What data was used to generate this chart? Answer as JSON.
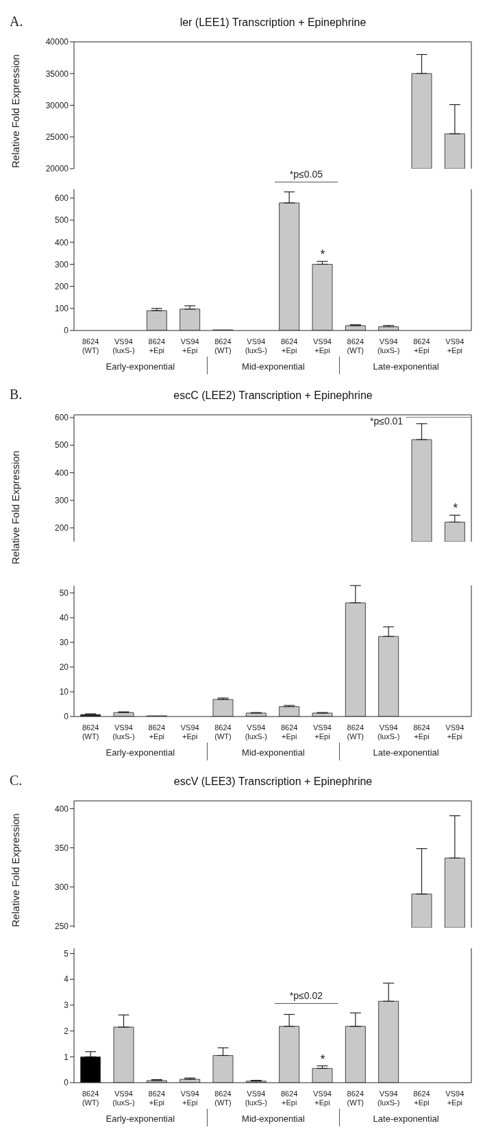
{
  "chart_data": [
    {
      "type": "bar",
      "title": "ler (LEE1) Transcription + Epinephrine",
      "categories": [
        null,
        null,
        null,
        null,
        null,
        null,
        null,
        null,
        null,
        null,
        null,
        null
      ],
      "values": [
        null,
        null,
        null,
        null,
        null,
        null,
        null,
        null,
        null,
        null,
        35000,
        25500
      ],
      "colors": [
        "#c8c8c8",
        "#c8c8c8",
        "#c8c8c8",
        "#c8c8c8",
        "#c8c8c8",
        "#c8c8c8",
        "#c8c8c8",
        "#c8c8c8",
        "#c8c8c8",
        "#c8c8c8",
        "#c8c8c8",
        "#c8c8c8"
      ],
      "errors": [
        null,
        null,
        null,
        null,
        null,
        null,
        null,
        null,
        null,
        null,
        [
          35000,
          38000
        ],
        [
          25500,
          30100
        ]
      ],
      "ylim": [
        20000,
        40000
      ],
      "yticks": [
        20000,
        25000,
        30000,
        35000,
        40000
      ],
      "tick_labels": "y",
      "annotations": [
        "A."
      ]
    },
    {
      "type": "bar",
      "ylabel": "Relative Fold Expression",
      "categories": [
        "8624 (WT)",
        "VS94 (luxS-)",
        "8624 +Epi",
        "VS94 +Epi",
        "8624 (WT)",
        "VS94 (luxS-)",
        "8624 +Epi",
        "VS94 +Epi",
        "8624 (WT)",
        "VS94 (luxS-)",
        "8624 +Epi",
        "VS94 +Epi"
      ],
      "values": [
        null,
        null,
        90,
        97,
        3,
        null,
        578,
        300,
        22,
        17,
        null,
        null
      ],
      "colors": [
        "#c8c8c8",
        "#c8c8c8",
        "#c8c8c8",
        "#c8c8c8",
        "#c8c8c8",
        "#c8c8c8",
        "#c8c8c8",
        "#c8c8c8",
        "#c8c8c8",
        "#c8c8c8",
        "#c8c8c8",
        "#c8c8c8"
      ],
      "errors": [
        null,
        null,
        [
          90,
          100
        ],
        [
          97,
          112
        ],
        null,
        null,
        [
          578,
          628
        ],
        [
          300,
          313
        ],
        [
          22,
          26
        ],
        [
          17,
          23
        ],
        null,
        null
      ],
      "ylim": [
        0,
        640
      ],
      "yticks": [
        0,
        100,
        200,
        300,
        400,
        500,
        600
      ],
      "annotations": [
        "*p≤0.05",
        "*",
        "Early-exponential",
        "Mid-exponential",
        "Late-exponential"
      ]
    },
    {
      "type": "bar",
      "title": "escC (LEE2) Transcription + Epinephrine",
      "categories": [
        null,
        null,
        null,
        null,
        null,
        null,
        null,
        null,
        null,
        null,
        null,
        null
      ],
      "values": [
        null,
        null,
        null,
        null,
        null,
        null,
        null,
        null,
        null,
        null,
        520,
        221
      ],
      "colors": [
        "#c8c8c8",
        "#c8c8c8",
        "#c8c8c8",
        "#c8c8c8",
        "#c8c8c8",
        "#c8c8c8",
        "#c8c8c8",
        "#c8c8c8",
        "#c8c8c8",
        "#c8c8c8",
        "#c8c8c8",
        "#c8c8c8"
      ],
      "errors": [
        null,
        null,
        null,
        null,
        null,
        null,
        null,
        null,
        null,
        null,
        [
          520,
          578
        ],
        [
          221,
          246
        ]
      ],
      "ylim": [
        150,
        610
      ],
      "yticks": [
        200,
        300,
        400,
        500,
        600
      ],
      "tick_labels": "y",
      "annotations": [
        "B.",
        "*p≤0.01",
        "*"
      ]
    },
    {
      "type": "bar",
      "ylabel": "Relative Fold Expression",
      "categories": [
        "8624 (WT)",
        "VS94 (luxS-)",
        "8624 +Epi",
        "VS94 +Epi",
        "8624 (WT)",
        "VS94 (luxS-)",
        "8624 +Epi",
        "VS94 +Epi",
        "8624 (WT)",
        "VS94 (luxS-)",
        "8624 +Epi",
        "VS94 +Epi"
      ],
      "values": [
        0.8,
        1.6,
        0.3,
        null,
        6.9,
        1.4,
        4,
        1.4,
        46,
        32.4,
        null,
        null
      ],
      "colors": [
        "#202020",
        "#c8c8c8",
        "#c8c8c8",
        "#c8c8c8",
        "#c8c8c8",
        "#c8c8c8",
        "#c8c8c8",
        "#c8c8c8",
        "#c8c8c8",
        "#c8c8c8",
        "#c8c8c8",
        "#c8c8c8"
      ],
      "errors": [
        [
          0.8,
          1.1
        ],
        [
          1.6,
          1.9
        ],
        null,
        null,
        [
          6.9,
          7.5
        ],
        [
          1.4,
          1.6
        ],
        [
          4,
          4.5
        ],
        [
          1.4,
          1.6
        ],
        [
          46,
          53
        ],
        [
          32.4,
          36.3
        ],
        null,
        null
      ],
      "ylim": [
        0,
        53
      ],
      "yticks": [
        0,
        10,
        20,
        30,
        40,
        50
      ],
      "annotations": [
        "Early-exponential",
        "Mid-exponential",
        "Late-exponential"
      ]
    },
    {
      "type": "bar",
      "title": "escV (LEE3) Transcription + Epinephrine",
      "categories": [
        null,
        null,
        null,
        null,
        null,
        null,
        null,
        null,
        null,
        null,
        null,
        null
      ],
      "values": [
        null,
        null,
        null,
        null,
        null,
        null,
        null,
        null,
        null,
        null,
        291,
        337
      ],
      "colors": [
        "#c8c8c8",
        "#c8c8c8",
        "#c8c8c8",
        "#c8c8c8",
        "#c8c8c8",
        "#c8c8c8",
        "#c8c8c8",
        "#c8c8c8",
        "#c8c8c8",
        "#c8c8c8",
        "#c8c8c8",
        "#c8c8c8"
      ],
      "errors": [
        null,
        null,
        null,
        null,
        null,
        null,
        null,
        null,
        null,
        null,
        [
          291,
          349
        ],
        [
          337,
          391
        ]
      ],
      "ylim": [
        248,
        410
      ],
      "yticks": [
        250,
        300,
        350,
        400
      ],
      "tick_labels": "y",
      "annotations": [
        "C."
      ]
    },
    {
      "type": "bar",
      "ylabel": "Relative Fold Expression",
      "categories": [
        "8624 (WT)",
        "VS94 (luxS-)",
        "8624 +Epi",
        "VS94 +Epi",
        "8624 (WT)",
        "VS94 (luxS-)",
        "8624 +Epi",
        "VS94 +Epi",
        "8624 (WT)",
        "VS94 (luxS-)",
        "8624 +Epi",
        "VS94 +Epi"
      ],
      "values": [
        1,
        2.15,
        0.08,
        0.13,
        1.05,
        0.06,
        2.18,
        0.55,
        2.18,
        3.15,
        null,
        null
      ],
      "colors": [
        "#000000",
        "#c8c8c8",
        "#c8c8c8",
        "#c8c8c8",
        "#c8c8c8",
        "#c8c8c8",
        "#c8c8c8",
        "#c8c8c8",
        "#c8c8c8",
        "#c8c8c8",
        "#c8c8c8",
        "#c8c8c8"
      ],
      "errors": [
        [
          1,
          1.2
        ],
        [
          2.15,
          2.62
        ],
        [
          0.08,
          0.12
        ],
        [
          0.13,
          0.18
        ],
        [
          1.05,
          1.35
        ],
        [
          0.06,
          0.09
        ],
        [
          2.18,
          2.64
        ],
        [
          0.55,
          0.65
        ],
        [
          2.18,
          2.7
        ],
        [
          3.15,
          3.85
        ],
        null,
        null
      ],
      "ylim": [
        0,
        5.2
      ],
      "yticks": [
        0,
        1,
        2,
        3,
        4,
        5
      ],
      "annotations": [
        "*p≤0.02",
        "*",
        "Early-exponential",
        "Mid-exponential",
        "Late-exponential"
      ]
    }
  ]
}
